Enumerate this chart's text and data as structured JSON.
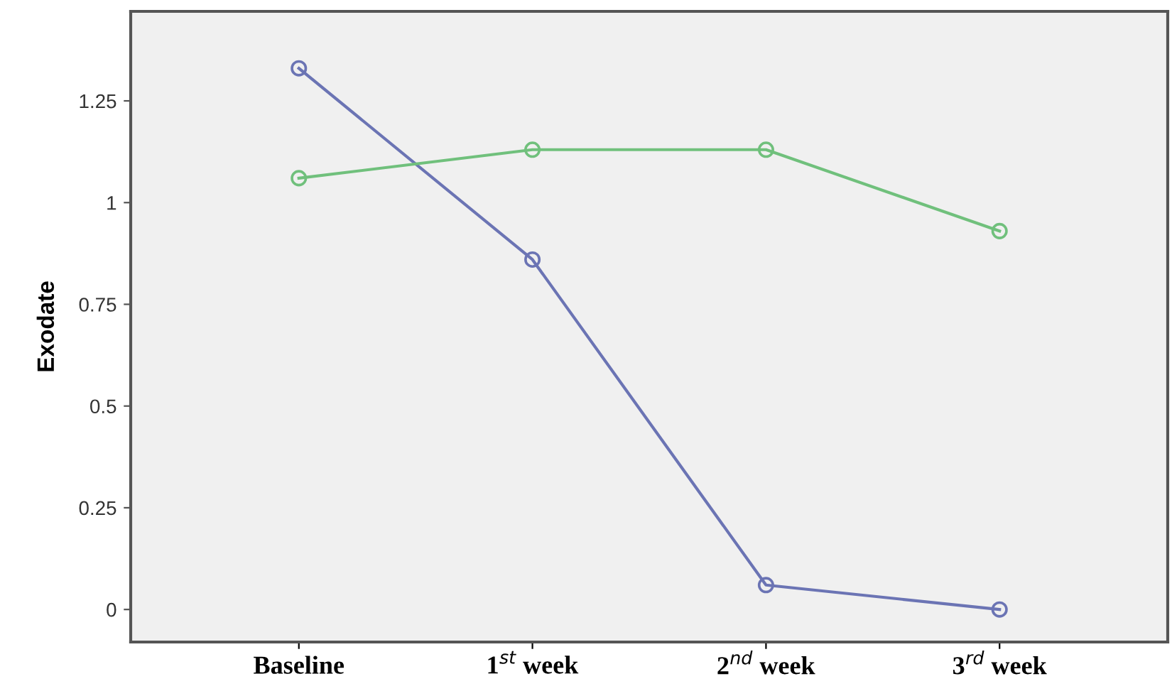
{
  "chart_data": {
    "type": "line",
    "ylabel": "Exodate",
    "categories": [
      "Baseline",
      "1$^{st}$ week",
      "2$^{nd}$ week",
      "3$^{rd}$ week"
    ],
    "series": [
      {
        "color": "#6b74b4",
        "values": [
          1.33,
          0.86,
          0.06,
          0
        ]
      },
      {
        "color": "#70c07c",
        "values": [
          1.06,
          1.13,
          1.13,
          0.93
        ]
      }
    ],
    "ylim": [
      -0.08,
      1.47
    ],
    "yticks": [
      0,
      0.25,
      0.5,
      0.75,
      1,
      1.25
    ],
    "marker": "circle",
    "line_style": "solid",
    "grid": false,
    "legend": false
  }
}
